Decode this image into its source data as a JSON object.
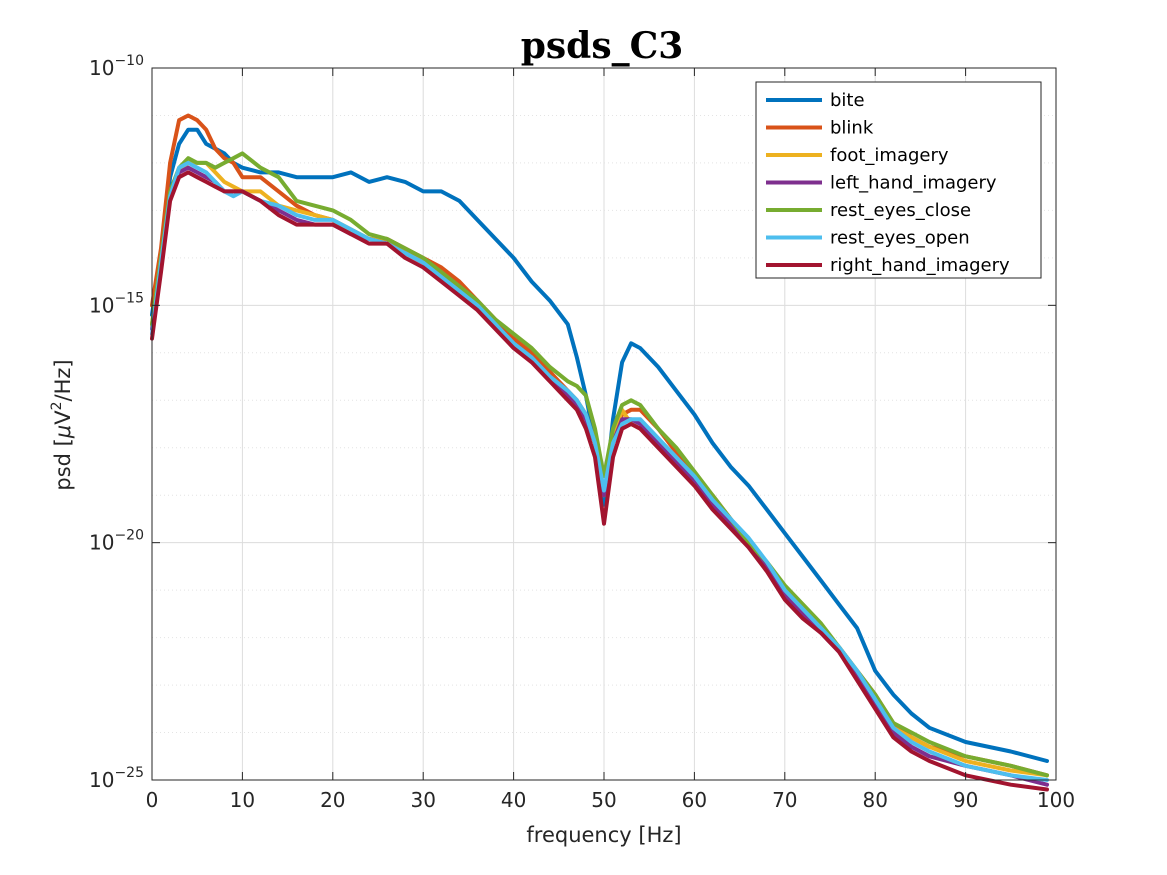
{
  "chart_data": {
    "type": "line",
    "title": "psds_C3",
    "xlabel": "frequency [Hz]",
    "ylabel": "psd [μV²/Hz]",
    "ylabel_parts": {
      "prefix": "psd [",
      "mu": "μ",
      "unit": "V",
      "sup": "2",
      "suffix": "/Hz]"
    },
    "xlim": [
      0,
      100
    ],
    "ylim": [
      1e-25,
      1e-10
    ],
    "yscale": "log",
    "grid": true,
    "legend_position": "top-right",
    "x_ticks": [
      0,
      10,
      20,
      30,
      40,
      50,
      60,
      70,
      80,
      90,
      100
    ],
    "y_tick_exponents": [
      -25,
      -20,
      -15,
      -10
    ],
    "y_tick_base": "10",
    "x": [
      0,
      1,
      2,
      3,
      4,
      5,
      6,
      7,
      8,
      9,
      10,
      12,
      14,
      16,
      18,
      20,
      22,
      24,
      26,
      28,
      30,
      32,
      34,
      36,
      38,
      40,
      42,
      44,
      46,
      47,
      48,
      49,
      50,
      51,
      52,
      53,
      54,
      56,
      58,
      60,
      62,
      64,
      66,
      68,
      70,
      72,
      74,
      76,
      78,
      80,
      82,
      84,
      86,
      90,
      95,
      99
    ],
    "series": [
      {
        "name": "bite",
        "color": "#0072BD",
        "log10_y": [
          -15.2,
          -13.9,
          -12.3,
          -11.6,
          -11.3,
          -11.3,
          -11.6,
          -11.7,
          -11.8,
          -12.0,
          -12.1,
          -12.2,
          -12.2,
          -12.3,
          -12.3,
          -12.3,
          -12.2,
          -12.4,
          -12.3,
          -12.4,
          -12.6,
          -12.6,
          -12.8,
          -13.2,
          -13.6,
          -14.0,
          -14.5,
          -14.9,
          -15.4,
          -16.1,
          -16.9,
          -17.9,
          -19.2,
          -17.4,
          -16.2,
          -15.8,
          -15.9,
          -16.3,
          -16.8,
          -17.3,
          -17.9,
          -18.4,
          -18.8,
          -19.3,
          -19.8,
          -20.3,
          -20.8,
          -21.3,
          -21.8,
          -22.7,
          -23.2,
          -23.6,
          -23.9,
          -24.2,
          -24.4,
          -24.6
        ]
      },
      {
        "name": "blink",
        "color": "#D95319",
        "log10_y": [
          -15.0,
          -13.8,
          -12.0,
          -11.1,
          -11.0,
          -11.1,
          -11.3,
          -11.7,
          -11.9,
          -12.0,
          -12.3,
          -12.3,
          -12.6,
          -12.9,
          -13.1,
          -13.2,
          -13.5,
          -13.6,
          -13.6,
          -13.8,
          -14.0,
          -14.2,
          -14.5,
          -14.9,
          -15.3,
          -15.7,
          -16.0,
          -16.4,
          -16.8,
          -17.0,
          -17.3,
          -17.9,
          -19.0,
          -17.8,
          -17.3,
          -17.2,
          -17.2,
          -17.6,
          -18.1,
          -18.6,
          -19.0,
          -19.5,
          -20.0,
          -20.5,
          -21.1,
          -21.4,
          -21.8,
          -22.2,
          -22.7,
          -23.2,
          -23.8,
          -24.1,
          -24.3,
          -24.5,
          -24.7,
          -24.9
        ]
      },
      {
        "name": "foot_imagery",
        "color": "#EDB120",
        "log10_y": [
          -15.4,
          -14.0,
          -12.7,
          -12.2,
          -12.0,
          -12.0,
          -12.0,
          -12.2,
          -12.4,
          -12.5,
          -12.6,
          -12.6,
          -12.9,
          -13.0,
          -13.1,
          -13.2,
          -13.4,
          -13.6,
          -13.6,
          -13.9,
          -14.1,
          -14.3,
          -14.7,
          -15.0,
          -15.4,
          -15.8,
          -16.1,
          -16.5,
          -16.9,
          -17.1,
          -17.4,
          -17.9,
          -19.0,
          -17.8,
          -17.2,
          -17.5,
          -17.6,
          -17.9,
          -18.3,
          -18.7,
          -19.2,
          -19.6,
          -20.0,
          -20.5,
          -21.1,
          -21.5,
          -21.8,
          -22.2,
          -22.7,
          -23.3,
          -23.9,
          -24.1,
          -24.3,
          -24.6,
          -24.8,
          -24.9
        ]
      },
      {
        "name": "left_hand_imagery",
        "color": "#7E2F8E",
        "log10_y": [
          -15.5,
          -14.1,
          -12.7,
          -12.2,
          -12.1,
          -12.2,
          -12.3,
          -12.4,
          -12.6,
          -12.6,
          -12.6,
          -12.8,
          -13.0,
          -13.2,
          -13.3,
          -13.3,
          -13.5,
          -13.6,
          -13.7,
          -13.9,
          -14.1,
          -14.4,
          -14.7,
          -15.0,
          -15.4,
          -15.8,
          -16.1,
          -16.5,
          -16.9,
          -17.1,
          -17.4,
          -17.9,
          -19.0,
          -17.9,
          -17.4,
          -17.4,
          -17.5,
          -17.9,
          -18.3,
          -18.7,
          -19.2,
          -19.6,
          -20.0,
          -20.5,
          -21.1,
          -21.5,
          -21.9,
          -22.3,
          -22.8,
          -23.4,
          -24.0,
          -24.3,
          -24.5,
          -24.7,
          -24.9,
          -25.1
        ]
      },
      {
        "name": "rest_eyes_close",
        "color": "#77AC30",
        "log10_y": [
          -15.4,
          -14.0,
          -12.6,
          -12.1,
          -11.9,
          -12.0,
          -12.0,
          -12.1,
          -12.0,
          -11.9,
          -11.8,
          -12.1,
          -12.3,
          -12.8,
          -12.9,
          -13.0,
          -13.2,
          -13.5,
          -13.6,
          -13.8,
          -14.0,
          -14.3,
          -14.6,
          -14.9,
          -15.3,
          -15.6,
          -15.9,
          -16.3,
          -16.6,
          -16.7,
          -16.9,
          -17.6,
          -18.6,
          -17.6,
          -17.1,
          -17.0,
          -17.1,
          -17.6,
          -18.0,
          -18.5,
          -19.0,
          -19.5,
          -20.0,
          -20.4,
          -20.9,
          -21.3,
          -21.7,
          -22.2,
          -22.7,
          -23.2,
          -23.8,
          -24.0,
          -24.2,
          -24.5,
          -24.7,
          -24.9
        ]
      },
      {
        "name": "rest_eyes_open",
        "color": "#4DBEEE",
        "log10_y": [
          -15.6,
          -14.1,
          -12.7,
          -12.1,
          -12.0,
          -12.1,
          -12.2,
          -12.4,
          -12.6,
          -12.7,
          -12.6,
          -12.8,
          -12.9,
          -13.1,
          -13.2,
          -13.2,
          -13.4,
          -13.6,
          -13.7,
          -13.9,
          -14.1,
          -14.4,
          -14.7,
          -15.0,
          -15.4,
          -15.8,
          -16.1,
          -16.5,
          -16.8,
          -17.0,
          -17.3,
          -17.9,
          -18.9,
          -17.9,
          -17.5,
          -17.4,
          -17.4,
          -17.8,
          -18.2,
          -18.6,
          -19.1,
          -19.5,
          -19.9,
          -20.4,
          -21.0,
          -21.4,
          -21.8,
          -22.2,
          -22.7,
          -23.3,
          -23.9,
          -24.2,
          -24.4,
          -24.7,
          -24.9,
          -25.0
        ]
      },
      {
        "name": "right_hand_imagery",
        "color": "#A2142F",
        "log10_y": [
          -15.7,
          -14.3,
          -12.8,
          -12.3,
          -12.2,
          -12.3,
          -12.4,
          -12.5,
          -12.6,
          -12.6,
          -12.6,
          -12.8,
          -13.1,
          -13.3,
          -13.3,
          -13.3,
          -13.5,
          -13.7,
          -13.7,
          -14.0,
          -14.2,
          -14.5,
          -14.8,
          -15.1,
          -15.5,
          -15.9,
          -16.2,
          -16.6,
          -17.0,
          -17.2,
          -17.6,
          -18.2,
          -19.6,
          -18.2,
          -17.6,
          -17.5,
          -17.6,
          -18.0,
          -18.4,
          -18.8,
          -19.3,
          -19.7,
          -20.1,
          -20.6,
          -21.2,
          -21.6,
          -21.9,
          -22.3,
          -22.9,
          -23.5,
          -24.1,
          -24.4,
          -24.6,
          -24.9,
          -25.1,
          -25.2
        ]
      }
    ]
  }
}
